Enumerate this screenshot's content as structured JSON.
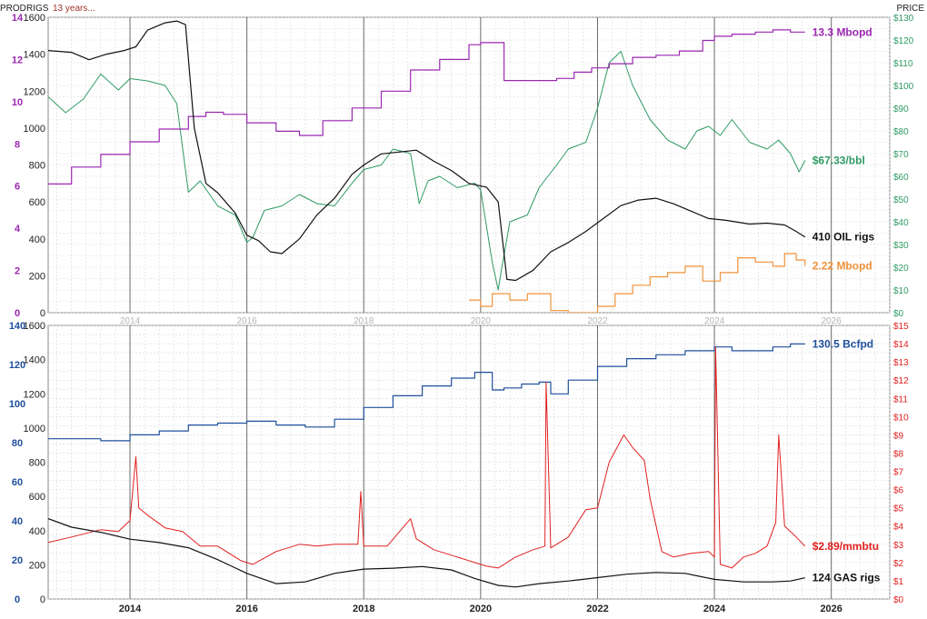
{
  "header": {
    "prod_label": "PROD",
    "rigs_label": "RIGS",
    "note": "13 years...",
    "price_label": "PRICE"
  },
  "colors": {
    "oil_prod": "#9b27b0",
    "oil_price": "#2e9a63",
    "oil_rigs": "#111111",
    "other_prod": "#f0923a",
    "gas_prod": "#1f4f9c",
    "gas_price": "#e02020",
    "gas_rigs": "#111111",
    "grid_major": "#6b6b6b",
    "grid_minor": "#d8d8d8",
    "year_label_top": "#b4b4b4",
    "year_label_bottom": "#222222"
  },
  "chart_data": [
    {
      "type": "line",
      "panel": "oil",
      "xlim": [
        2012.6,
        2027.0
      ],
      "x_ticks": [
        "2014",
        "2016",
        "2018",
        "2020",
        "2022",
        "2024",
        "2026"
      ],
      "left_axis_prod": {
        "ylim": [
          0,
          14
        ],
        "ticks": [
          "0",
          "2",
          "4",
          "6",
          "8",
          "10",
          "12",
          "14"
        ]
      },
      "left_axis_rigs": {
        "ylim": [
          0,
          1600
        ],
        "ticks": [
          "0",
          "200",
          "400",
          "600",
          "800",
          "1000",
          "1200",
          "1400",
          "1600"
        ]
      },
      "right_axis_price": {
        "ylim": [
          0,
          130
        ],
        "ticks": [
          "$0",
          "$10",
          "$20",
          "$30",
          "$40",
          "$50",
          "$60",
          "$70",
          "$80",
          "$90",
          "$100",
          "$110",
          "$120",
          "$130"
        ]
      },
      "series": [
        {
          "axis": "price",
          "label": "$67.33/bbl",
          "color_key": "oil_price",
          "x": [
            2012.6,
            2012.9,
            2013.2,
            2013.5,
            2013.8,
            2014.0,
            2014.3,
            2014.6,
            2014.8,
            2015.0,
            2015.2,
            2015.5,
            2015.8,
            2016.0,
            2016.1,
            2016.3,
            2016.6,
            2016.9,
            2017.2,
            2017.5,
            2017.8,
            2018.0,
            2018.3,
            2018.5,
            2018.8,
            2018.95,
            2019.1,
            2019.3,
            2019.6,
            2019.9,
            2020.0,
            2020.2,
            2020.3,
            2020.35,
            2020.5,
            2020.8,
            2021.0,
            2021.3,
            2021.5,
            2021.8,
            2022.0,
            2022.2,
            2022.4,
            2022.6,
            2022.9,
            2023.2,
            2023.5,
            2023.7,
            2023.9,
            2024.1,
            2024.3,
            2024.6,
            2024.9,
            2025.1,
            2025.3,
            2025.45,
            2025.55
          ],
          "y": [
            95,
            88,
            94,
            105,
            98,
            103,
            102,
            100,
            92,
            53,
            58,
            47,
            43,
            31,
            33,
            45,
            47,
            52,
            48,
            47,
            57,
            63,
            65,
            72,
            70,
            48,
            58,
            60,
            55,
            57,
            54,
            22,
            10,
            18,
            40,
            43,
            55,
            65,
            72,
            75,
            90,
            110,
            115,
            100,
            85,
            76,
            72,
            80,
            82,
            78,
            85,
            75,
            72,
            76,
            70,
            62,
            67
          ]
        },
        {
          "axis": "prod",
          "label": "13.3 Mbopd",
          "color_key": "oil_prod",
          "x": [
            2012.6,
            2013.0,
            2013.5,
            2014.0,
            2014.5,
            2015.0,
            2015.3,
            2015.6,
            2016.0,
            2016.5,
            2016.9,
            2017.3,
            2017.8,
            2018.3,
            2018.8,
            2019.3,
            2019.8,
            2020.0,
            2020.2,
            2020.4,
            2020.6,
            2020.9,
            2021.3,
            2021.6,
            2021.9,
            2022.2,
            2022.6,
            2023.0,
            2023.4,
            2023.8,
            2024.0,
            2024.3,
            2024.7,
            2025.0,
            2025.3,
            2025.55
          ],
          "y": [
            6.1,
            6.9,
            7.5,
            8.1,
            8.7,
            9.3,
            9.5,
            9.4,
            9.0,
            8.6,
            8.4,
            9.1,
            9.7,
            10.5,
            11.5,
            12.0,
            12.7,
            12.8,
            12.8,
            11.0,
            11.0,
            11.0,
            11.1,
            11.4,
            11.6,
            11.8,
            12.1,
            12.2,
            12.4,
            12.9,
            13.1,
            13.2,
            13.3,
            13.4,
            13.3,
            13.3
          ]
        },
        {
          "axis": "rigs",
          "label": "410 OIL rigs",
          "color_key": "oil_rigs",
          "x": [
            2012.6,
            2013.0,
            2013.3,
            2013.6,
            2013.9,
            2014.1,
            2014.3,
            2014.6,
            2014.8,
            2014.95,
            2015.1,
            2015.3,
            2015.5,
            2015.8,
            2016.0,
            2016.2,
            2016.4,
            2016.6,
            2016.9,
            2017.2,
            2017.5,
            2017.8,
            2018.0,
            2018.3,
            2018.6,
            2018.9,
            2019.2,
            2019.5,
            2019.8,
            2020.1,
            2020.3,
            2020.45,
            2020.6,
            2020.9,
            2021.2,
            2021.5,
            2021.8,
            2022.1,
            2022.4,
            2022.7,
            2023.0,
            2023.3,
            2023.6,
            2023.9,
            2024.2,
            2024.6,
            2024.9,
            2025.2,
            2025.4,
            2025.55
          ],
          "y": [
            1420,
            1410,
            1370,
            1400,
            1420,
            1440,
            1530,
            1570,
            1580,
            1560,
            1000,
            700,
            650,
            540,
            420,
            390,
            330,
            320,
            400,
            530,
            620,
            750,
            800,
            860,
            870,
            880,
            820,
            770,
            700,
            680,
            600,
            180,
            175,
            230,
            330,
            380,
            440,
            510,
            580,
            610,
            620,
            590,
            550,
            510,
            500,
            480,
            485,
            475,
            440,
            410
          ]
        },
        {
          "axis": "prod",
          "label": "2.22 Mbopd",
          "color_key": "other_prod",
          "x": [
            2019.8,
            2020.0,
            2020.2,
            2020.5,
            2020.8,
            2021.2,
            2021.5,
            2021.8,
            2022.0,
            2022.3,
            2022.6,
            2022.9,
            2023.2,
            2023.5,
            2023.8,
            2024.1,
            2024.4,
            2024.7,
            2025.0,
            2025.2,
            2025.4,
            2025.55
          ],
          "y": [
            0.6,
            0.3,
            0.9,
            0.6,
            0.9,
            0.1,
            0.0,
            0.0,
            0.3,
            0.9,
            1.3,
            1.7,
            1.9,
            2.2,
            1.5,
            1.9,
            2.6,
            2.4,
            2.2,
            2.8,
            2.5,
            2.22
          ]
        }
      ],
      "labels": [
        "13.3 Mbopd",
        "$67.33/bbl",
        "410 OIL rigs",
        "2.22 Mbopd"
      ]
    },
    {
      "type": "line",
      "panel": "gas",
      "xlim": [
        2012.6,
        2027.0
      ],
      "x_ticks": [
        "2014",
        "2016",
        "2018",
        "2020",
        "2022",
        "2024",
        "2026"
      ],
      "left_axis_prod": {
        "ylim": [
          0,
          140
        ],
        "ticks": [
          "0",
          "20",
          "40",
          "60",
          "80",
          "100",
          "120",
          "140"
        ]
      },
      "left_axis_rigs": {
        "ylim": [
          0,
          1600
        ],
        "ticks": [
          "0",
          "200",
          "400",
          "600",
          "800",
          "1000",
          "1200",
          "1400",
          "1600"
        ]
      },
      "right_axis_price": {
        "ylim": [
          0,
          15
        ],
        "ticks": [
          "$0",
          "$1",
          "$2",
          "$3",
          "$4",
          "$5",
          "$6",
          "$7",
          "$8",
          "$9",
          "$10",
          "$11",
          "$12",
          "$13",
          "$14",
          "$15"
        ]
      },
      "series": [
        {
          "axis": "prod",
          "label": "130.5 Bcfpd",
          "color_key": "gas_prod",
          "x": [
            2012.6,
            2013.0,
            2013.5,
            2014.0,
            2014.5,
            2015.0,
            2015.5,
            2016.0,
            2016.5,
            2017.0,
            2017.5,
            2018.0,
            2018.5,
            2019.0,
            2019.5,
            2019.9,
            2020.2,
            2020.4,
            2020.7,
            2021.0,
            2021.2,
            2021.5,
            2022.0,
            2022.5,
            2023.0,
            2023.5,
            2024.0,
            2024.3,
            2024.6,
            2025.0,
            2025.3,
            2025.55
          ],
          "y": [
            82,
            82,
            81,
            84,
            86,
            89,
            90,
            91,
            89,
            88,
            92,
            98,
            104,
            109,
            113,
            116,
            107,
            108,
            110,
            111,
            105,
            112,
            119,
            123,
            125,
            127,
            129,
            127,
            127,
            129,
            130.5,
            130.5
          ]
        },
        {
          "axis": "price",
          "label": "$2.89/mmbtu",
          "color_key": "gas_price",
          "x": [
            2012.6,
            2013.0,
            2013.5,
            2013.8,
            2014.0,
            2014.1,
            2014.15,
            2014.3,
            2014.6,
            2014.9,
            2015.2,
            2015.5,
            2015.9,
            2016.1,
            2016.5,
            2016.9,
            2017.2,
            2017.5,
            2017.9,
            2017.95,
            2018.0,
            2018.4,
            2018.8,
            2018.9,
            2019.2,
            2019.6,
            2019.9,
            2020.1,
            2020.3,
            2020.6,
            2020.9,
            2021.1,
            2021.12,
            2021.2,
            2021.5,
            2021.8,
            2022.0,
            2022.2,
            2022.45,
            2022.6,
            2022.8,
            2022.9,
            2023.1,
            2023.3,
            2023.6,
            2023.9,
            2024.0,
            2024.02,
            2024.1,
            2024.3,
            2024.5,
            2024.7,
            2024.9,
            2025.05,
            2025.1,
            2025.2,
            2025.4,
            2025.55
          ],
          "y": [
            3.1,
            3.4,
            3.8,
            3.7,
            4.3,
            7.8,
            5.0,
            4.6,
            3.9,
            3.7,
            2.9,
            2.9,
            2.1,
            1.9,
            2.6,
            3.0,
            2.9,
            3.0,
            3.0,
            5.9,
            2.9,
            2.9,
            4.4,
            3.3,
            2.7,
            2.3,
            2.0,
            1.8,
            1.7,
            2.3,
            2.7,
            2.9,
            11.9,
            2.8,
            3.4,
            4.9,
            5.0,
            7.5,
            9.0,
            8.3,
            7.6,
            5.5,
            2.6,
            2.3,
            2.5,
            2.6,
            2.3,
            13.8,
            1.9,
            1.7,
            2.3,
            2.5,
            2.9,
            4.2,
            9.0,
            4.0,
            3.4,
            2.89
          ]
        },
        {
          "axis": "rigs",
          "label": "124 GAS rigs",
          "color_key": "gas_rigs",
          "x": [
            2012.6,
            2013.0,
            2013.5,
            2014.0,
            2014.5,
            2015.0,
            2015.5,
            2016.0,
            2016.5,
            2017.0,
            2017.5,
            2018.0,
            2018.5,
            2019.0,
            2019.5,
            2019.9,
            2020.3,
            2020.6,
            2021.0,
            2021.5,
            2022.0,
            2022.5,
            2023.0,
            2023.5,
            2024.0,
            2024.5,
            2025.0,
            2025.3,
            2025.55
          ],
          "y": [
            470,
            420,
            390,
            350,
            330,
            300,
            230,
            150,
            90,
            100,
            150,
            175,
            180,
            190,
            170,
            120,
            80,
            70,
            90,
            105,
            125,
            145,
            155,
            150,
            115,
            100,
            100,
            105,
            124
          ]
        }
      ],
      "labels": [
        "130.5 Bcfpd",
        "$2.89/mmbtu",
        "124 GAS rigs"
      ]
    }
  ]
}
